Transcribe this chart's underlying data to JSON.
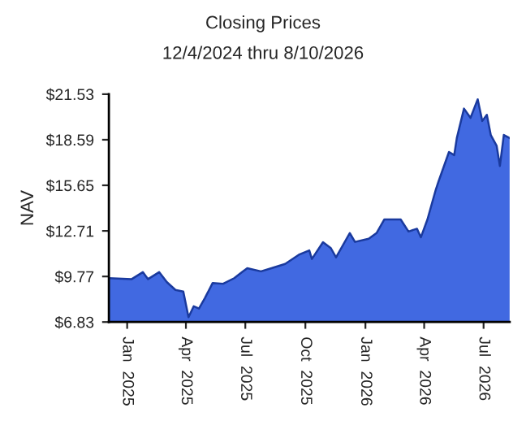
{
  "chart_data": {
    "type": "area",
    "title": "Closing Prices",
    "subtitle": "12/4/2024 thru 8/10/2026",
    "ylabel": "NAV",
    "x": [
      "2024-12-04",
      "2025-01-08",
      "2025-01-25",
      "2025-02-02",
      "2025-02-19",
      "2025-03-03",
      "2025-03-16",
      "2025-03-28",
      "2025-04-05",
      "2025-04-13",
      "2025-04-21",
      "2025-04-30",
      "2025-05-12",
      "2025-05-28",
      "2025-06-14",
      "2025-06-26",
      "2025-07-04",
      "2025-07-25",
      "2025-08-10",
      "2025-08-31",
      "2025-09-21",
      "2025-10-07",
      "2025-10-11",
      "2025-10-28",
      "2025-11-09",
      "2025-11-17",
      "2025-12-08",
      "2025-12-16",
      "2026-01-06",
      "2026-01-18",
      "2026-01-30",
      "2026-02-12",
      "2026-02-24",
      "2026-03-08",
      "2026-03-21",
      "2026-03-27",
      "2026-04-06",
      "2026-04-19",
      "2026-04-23",
      "2026-05-09",
      "2026-05-17",
      "2026-05-21",
      "2026-06-01",
      "2026-06-11",
      "2026-06-22",
      "2026-06-29",
      "2026-07-06",
      "2026-07-12",
      "2026-07-21",
      "2026-07-26",
      "2026-08-01",
      "2026-08-10"
    ],
    "series": [
      {
        "color": "#4169e1",
        "values": [
          9.66,
          9.6,
          10.05,
          9.6,
          10.05,
          9.4,
          8.9,
          8.8,
          7.14,
          7.85,
          7.7,
          8.37,
          9.35,
          9.3,
          9.66,
          10.05,
          10.3,
          10.1,
          10.3,
          10.58,
          11.17,
          11.45,
          10.9,
          11.98,
          11.6,
          11.0,
          12.57,
          12.0,
          12.2,
          12.57,
          13.45,
          13.45,
          13.45,
          12.67,
          12.85,
          12.3,
          13.45,
          15.4,
          15.9,
          17.8,
          17.6,
          18.7,
          20.6,
          20.0,
          21.2,
          19.8,
          20.2,
          18.9,
          18.2,
          16.9,
          18.9,
          18.7
        ]
      }
    ],
    "xlim": [
      "2024-12-04",
      "2026-08-10"
    ],
    "xticks": [
      {
        "value": "2025-01-01",
        "label": "Jan  2025"
      },
      {
        "value": "2025-04-01",
        "label": "Apr  2025"
      },
      {
        "value": "2025-07-01",
        "label": "Jul  2025"
      },
      {
        "value": "2025-10-01",
        "label": "Oct  2025"
      },
      {
        "value": "2026-01-01",
        "label": "Jan  2026"
      },
      {
        "value": "2026-04-01",
        "label": "Apr  2026"
      },
      {
        "value": "2026-07-01",
        "label": "Jul  2026"
      }
    ],
    "ylim": [
      6.83,
      21.53
    ],
    "yticks": [
      {
        "value": 6.83,
        "label": "$6.83"
      },
      {
        "value": 9.77,
        "label": "$9.77"
      },
      {
        "value": 12.71,
        "label": "$12.71"
      },
      {
        "value": 15.65,
        "label": "$15.65"
      },
      {
        "value": 18.59,
        "label": "$18.59"
      },
      {
        "value": 21.53,
        "label": "$21.53"
      }
    ],
    "grid": false,
    "legend": false
  }
}
